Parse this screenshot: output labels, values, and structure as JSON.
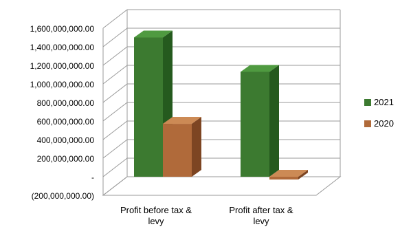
{
  "chart_data": {
    "type": "bar",
    "categories": [
      "Profit before tax & levy",
      "Profit after tax & levy"
    ],
    "series": [
      {
        "name": "2021",
        "values": [
          1500000000,
          1130000000
        ]
      },
      {
        "name": "2020",
        "values": [
          570000000,
          -30000000
        ]
      }
    ],
    "ylim": [
      -200000000,
      1600000000
    ],
    "yticks": [
      -200000000,
      0,
      200000000,
      400000000,
      600000000,
      800000000,
      1000000000,
      1200000000,
      1400000000,
      1600000000
    ],
    "ytick_labels": [
      "(200,000,000.00)",
      "-",
      "200,000,000.00",
      "400,000,000.00",
      "600,000,000.00",
      "800,000,000.00",
      "1,000,000,000.00",
      "1,200,000,000.00",
      "1,400,000,000.00",
      "1,600,000,000.00"
    ],
    "category_labels": [
      [
        "Profit before tax &",
        "levy"
      ],
      [
        "Profit after tax &",
        "levy"
      ]
    ],
    "grid": true,
    "legend_position": "right",
    "three_d": true,
    "colors": {
      "2021": {
        "front": "#3c7a30",
        "top": "#4f9a40",
        "side": "#255a1e"
      },
      "2020": {
        "front": "#b06a3a",
        "top": "#cc8a55",
        "side": "#7d4522"
      },
      "grid": "#999999"
    }
  }
}
